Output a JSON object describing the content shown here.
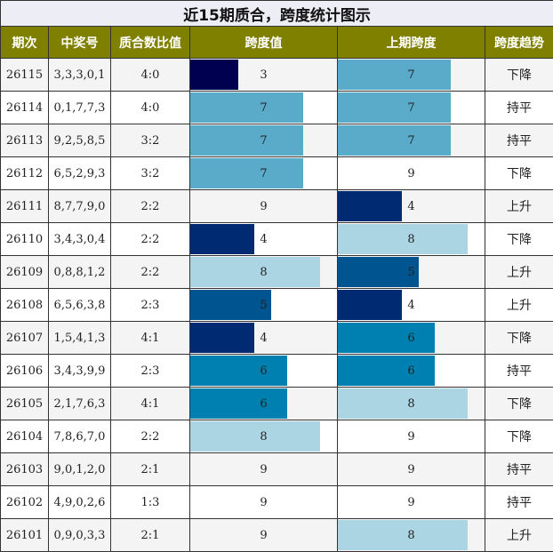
{
  "title": "近15期质合，跨度统计图示",
  "headers": [
    "期次",
    "中奖号",
    "质合数比值",
    "跨度值",
    "上期跨度",
    "跨度趋势"
  ],
  "span_colors": {
    "3": "#000050",
    "4": "#002b72",
    "5": "#00548f",
    "6": "#0080b0",
    "7": "#5aabca",
    "8": "#abd5e3",
    "9": "#ffffff"
  },
  "chart_data": {
    "type": "table",
    "title": "近15期质合，跨度统计图示",
    "columns": [
      "期次",
      "中奖号",
      "质合数比值",
      "跨度值",
      "上期跨度",
      "跨度趋势"
    ],
    "bar_max": 9,
    "rows": [
      {
        "issue": "26115",
        "numbers": "3,3,3,0,1",
        "ratio": "4:0",
        "span": 3,
        "prev_span": 7,
        "trend": "下降"
      },
      {
        "issue": "26114",
        "numbers": "0,1,7,7,3",
        "ratio": "4:0",
        "span": 7,
        "prev_span": 7,
        "trend": "持平"
      },
      {
        "issue": "26113",
        "numbers": "9,2,5,8,5",
        "ratio": "3:2",
        "span": 7,
        "prev_span": 7,
        "trend": "持平"
      },
      {
        "issue": "26112",
        "numbers": "6,5,2,9,3",
        "ratio": "3:2",
        "span": 7,
        "prev_span": 9,
        "trend": "下降"
      },
      {
        "issue": "26111",
        "numbers": "8,7,7,9,0",
        "ratio": "2:2",
        "span": 9,
        "prev_span": 4,
        "trend": "上升"
      },
      {
        "issue": "26110",
        "numbers": "3,4,3,0,4",
        "ratio": "2:2",
        "span": 4,
        "prev_span": 8,
        "trend": "下降"
      },
      {
        "issue": "26109",
        "numbers": "0,8,8,1,2",
        "ratio": "2:2",
        "span": 8,
        "prev_span": 5,
        "trend": "上升"
      },
      {
        "issue": "26108",
        "numbers": "6,5,6,3,8",
        "ratio": "2:3",
        "span": 5,
        "prev_span": 4,
        "trend": "上升"
      },
      {
        "issue": "26107",
        "numbers": "1,5,4,1,3",
        "ratio": "4:1",
        "span": 4,
        "prev_span": 6,
        "trend": "下降"
      },
      {
        "issue": "26106",
        "numbers": "3,4,3,9,9",
        "ratio": "2:3",
        "span": 6,
        "prev_span": 6,
        "trend": "持平"
      },
      {
        "issue": "26105",
        "numbers": "2,1,7,6,3",
        "ratio": "4:1",
        "span": 6,
        "prev_span": 8,
        "trend": "下降"
      },
      {
        "issue": "26104",
        "numbers": "7,8,6,7,0",
        "ratio": "2:2",
        "span": 8,
        "prev_span": 9,
        "trend": "下降"
      },
      {
        "issue": "26103",
        "numbers": "9,0,1,2,0",
        "ratio": "2:1",
        "span": 9,
        "prev_span": 9,
        "trend": "持平"
      },
      {
        "issue": "26102",
        "numbers": "4,9,0,2,6",
        "ratio": "1:3",
        "span": 9,
        "prev_span": 9,
        "trend": "持平"
      },
      {
        "issue": "26101",
        "numbers": "0,9,0,3,3",
        "ratio": "2:1",
        "span": 9,
        "prev_span": 8,
        "trend": "上升"
      }
    ]
  }
}
